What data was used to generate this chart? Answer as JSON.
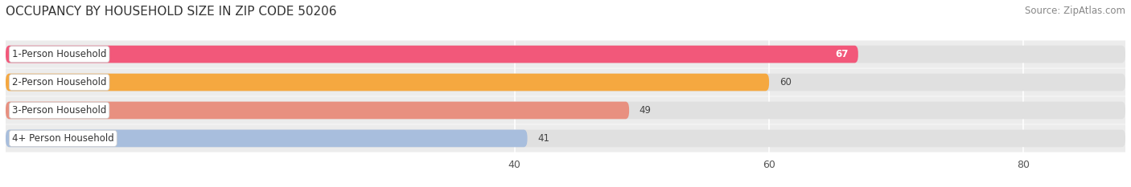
{
  "title": "OCCUPANCY BY HOUSEHOLD SIZE IN ZIP CODE 50206",
  "source": "Source: ZipAtlas.com",
  "categories": [
    "1-Person Household",
    "2-Person Household",
    "3-Person Household",
    "4+ Person Household"
  ],
  "values": [
    67,
    60,
    49,
    41
  ],
  "bar_colors": [
    "#f2587a",
    "#f5a840",
    "#e89080",
    "#a8bedd"
  ],
  "bar_label_colors": [
    "white",
    "black",
    "black",
    "black"
  ],
  "xlim_min": 0,
  "xlim_max": 88,
  "xaxis_min": 30,
  "xticks": [
    40,
    60,
    80
  ],
  "background_color": "#f5f5f5",
  "bar_bg_color": "#e8e8e8",
  "row_bg_color": "#f0f0f0",
  "title_fontsize": 11,
  "source_fontsize": 8.5,
  "label_fontsize": 8.5,
  "value_fontsize": 8.5,
  "tick_fontsize": 9,
  "bar_height": 0.62,
  "figsize": [
    14.06,
    2.33
  ],
  "dpi": 100
}
